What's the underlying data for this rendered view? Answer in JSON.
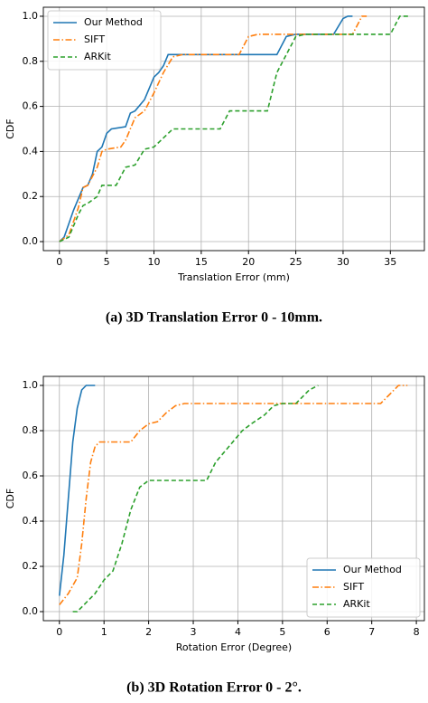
{
  "chart_data": [
    {
      "type": "line",
      "caption": "(a) 3D Translation Error 0 - 10mm.",
      "xlabel": "Translation Error (mm)",
      "ylabel": "CDF",
      "xlim": [
        -1.7,
        38.6
      ],
      "ylim": [
        -0.04,
        1.04
      ],
      "xticks": [
        0,
        5,
        10,
        15,
        20,
        25,
        30,
        35
      ],
      "yticks": [
        {
          "value": 0,
          "label": "0.0"
        },
        0.2,
        0.4,
        0.6,
        0.8,
        {
          "value": 1,
          "label": "1.0"
        }
      ],
      "grid": true,
      "legend": "upper-left",
      "series": [
        {
          "name": "Our Method",
          "color": "#1f77b4",
          "linestyle": "solid",
          "x": [
            0,
            0.5,
            1,
            1.5,
            2,
            2.5,
            3,
            3.5,
            4,
            4.5,
            5,
            5.5,
            7,
            7.5,
            8,
            9,
            10,
            10.5,
            11,
            11.5,
            12,
            23,
            24,
            25,
            29,
            30,
            30.5,
            31
          ],
          "values": [
            0,
            0.02,
            0.08,
            0.14,
            0.19,
            0.24,
            0.25,
            0.3,
            0.4,
            0.42,
            0.48,
            0.5,
            0.51,
            0.57,
            0.58,
            0.63,
            0.73,
            0.75,
            0.78,
            0.83,
            0.83,
            0.83,
            0.91,
            0.92,
            0.92,
            0.99,
            1.0,
            1.0
          ]
        },
        {
          "name": "SIFT",
          "color": "#ff7f0e",
          "linestyle": "dashdot",
          "x": [
            0,
            1,
            2,
            2.5,
            3,
            4,
            4.5,
            5,
            6.5,
            7,
            8,
            9,
            10,
            11,
            12,
            13,
            19,
            20,
            21,
            31,
            32,
            32.5
          ],
          "values": [
            0,
            0.03,
            0.15,
            0.24,
            0.25,
            0.33,
            0.4,
            0.41,
            0.42,
            0.45,
            0.55,
            0.58,
            0.66,
            0.75,
            0.82,
            0.83,
            0.83,
            0.91,
            0.92,
            0.92,
            1.0,
            1.0
          ]
        },
        {
          "name": "ARKit",
          "color": "#2ca02c",
          "linestyle": "dashed",
          "x": [
            0,
            1,
            2,
            2.5,
            3,
            4,
            4.5,
            6,
            7,
            8,
            9,
            10,
            11,
            12,
            17,
            18,
            22,
            23,
            24,
            25,
            26,
            35,
            36,
            37
          ],
          "values": [
            0,
            0.02,
            0.12,
            0.16,
            0.17,
            0.2,
            0.25,
            0.25,
            0.33,
            0.34,
            0.41,
            0.42,
            0.46,
            0.5,
            0.5,
            0.58,
            0.58,
            0.75,
            0.83,
            0.91,
            0.92,
            0.92,
            1.0,
            1.0
          ]
        }
      ]
    },
    {
      "type": "line",
      "caption": "(b) 3D Rotation Error 0 - 2°.",
      "xlabel": "Rotation Error (Degree)",
      "ylabel": "CDF",
      "xlim": [
        -0.36,
        8.18
      ],
      "ylim": [
        -0.04,
        1.04
      ],
      "xticks": [
        0,
        1,
        2,
        3,
        4,
        5,
        6,
        7,
        8
      ],
      "yticks": [
        {
          "value": 0,
          "label": "0.0"
        },
        0.2,
        0.4,
        0.6,
        0.8,
        {
          "value": 1,
          "label": "1.0"
        }
      ],
      "grid": true,
      "legend": "lower-right",
      "series": [
        {
          "name": "Our Method",
          "color": "#1f77b4",
          "linestyle": "solid",
          "x": [
            0,
            0.1,
            0.2,
            0.3,
            0.4,
            0.5,
            0.6,
            0.8
          ],
          "values": [
            0.07,
            0.25,
            0.5,
            0.75,
            0.9,
            0.98,
            1.0,
            1.0
          ]
        },
        {
          "name": "SIFT",
          "color": "#ff7f0e",
          "linestyle": "dashdot",
          "x": [
            0,
            0.2,
            0.4,
            0.5,
            0.6,
            0.7,
            0.8,
            0.9,
            1.6,
            1.8,
            2,
            2.2,
            2.4,
            2.6,
            2.8,
            7.2,
            7.4,
            7.6,
            7.8
          ],
          "values": [
            0.03,
            0.08,
            0.15,
            0.3,
            0.5,
            0.66,
            0.73,
            0.75,
            0.75,
            0.8,
            0.83,
            0.84,
            0.88,
            0.91,
            0.92,
            0.92,
            0.96,
            1.0,
            1.0
          ]
        },
        {
          "name": "ARKit",
          "color": "#2ca02c",
          "linestyle": "dashed",
          "x": [
            0.3,
            0.4,
            0.6,
            0.8,
            1,
            1.2,
            1.4,
            1.6,
            1.8,
            2,
            3.3,
            3.5,
            3.8,
            4.1,
            4.3,
            4.6,
            4.8,
            5,
            5.3,
            5.6,
            5.8
          ],
          "values": [
            0,
            0,
            0.04,
            0.08,
            0.14,
            0.18,
            0.3,
            0.45,
            0.55,
            0.58,
            0.58,
            0.66,
            0.73,
            0.8,
            0.83,
            0.87,
            0.91,
            0.92,
            0.92,
            0.98,
            1.0
          ]
        }
      ]
    }
  ]
}
